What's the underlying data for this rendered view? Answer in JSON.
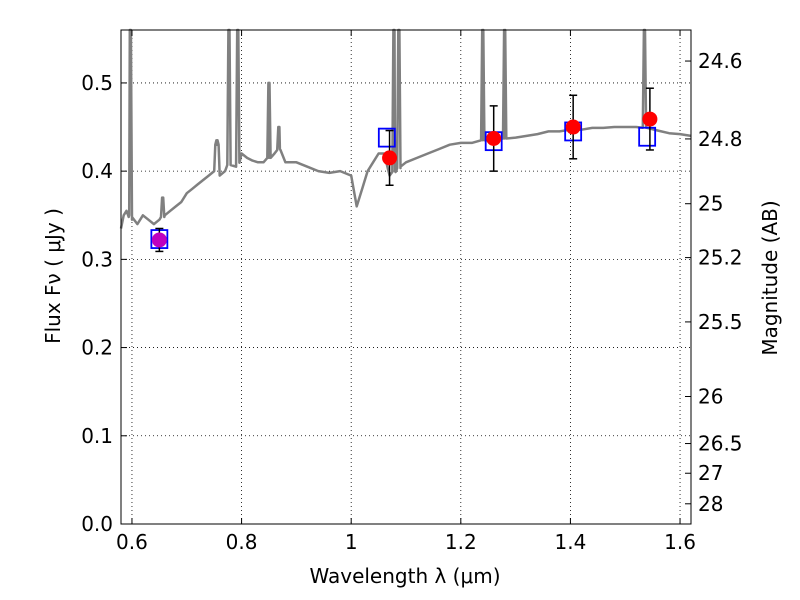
{
  "chart_data": {
    "type": "scatter",
    "xlabel": "Wavelength  λ (μm)",
    "ylabel": "Flux  Fν  ( μJy )",
    "y2label": "Magnitude (AB)",
    "xlim": [
      0.58,
      1.62
    ],
    "ylim": [
      0.0,
      0.56
    ],
    "grid": true,
    "x_ticks": [
      {
        "value": 0.6,
        "label": "0.6"
      },
      {
        "value": 0.8,
        "label": "0.8"
      },
      {
        "value": 1.0,
        "label": "1"
      },
      {
        "value": 1.2,
        "label": "1.2"
      },
      {
        "value": 1.4,
        "label": "1.4"
      },
      {
        "value": 1.6,
        "label": "1.6"
      }
    ],
    "y_ticks": [
      {
        "value": 0.0,
        "label": "0.0"
      },
      {
        "value": 0.1,
        "label": "0.1"
      },
      {
        "value": 0.2,
        "label": "0.2"
      },
      {
        "value": 0.3,
        "label": "0.3"
      },
      {
        "value": 0.4,
        "label": "0.4"
      },
      {
        "value": 0.5,
        "label": "0.5"
      }
    ],
    "y2_ticks": [
      {
        "value": 24.6,
        "label": "24.6"
      },
      {
        "value": 24.8,
        "label": "24.8"
      },
      {
        "value": 25.0,
        "label": "25"
      },
      {
        "value": 25.2,
        "label": "25.2"
      },
      {
        "value": 25.5,
        "label": "25.5"
      },
      {
        "value": 26.0,
        "label": "26"
      },
      {
        "value": 26.5,
        "label": "26.5"
      },
      {
        "value": 27.0,
        "label": "27"
      },
      {
        "value": 28.0,
        "label": "28"
      }
    ],
    "colors": {
      "model": "#808080",
      "observed": "#ff0000",
      "first_point": "#bf00bf",
      "model_box": "#0000ff",
      "errorbar": "#000000",
      "grid": "#000000"
    },
    "model_spectrum": {
      "x": [
        0.58,
        0.585,
        0.59,
        0.595,
        0.6,
        0.61,
        0.62,
        0.63,
        0.64,
        0.65,
        0.66,
        0.67,
        0.68,
        0.69,
        0.7,
        0.71,
        0.72,
        0.73,
        0.74,
        0.75,
        0.755,
        0.76,
        0.77,
        0.78,
        0.79,
        0.8,
        0.81,
        0.82,
        0.83,
        0.84,
        0.85,
        0.86,
        0.87,
        0.88,
        0.9,
        0.92,
        0.94,
        0.96,
        0.98,
        1.0,
        1.01,
        1.02,
        1.03,
        1.04,
        1.05,
        1.06,
        1.07,
        1.08,
        1.09,
        1.1,
        1.12,
        1.14,
        1.16,
        1.18,
        1.2,
        1.22,
        1.24,
        1.26,
        1.28,
        1.3,
        1.32,
        1.34,
        1.36,
        1.38,
        1.4,
        1.42,
        1.44,
        1.46,
        1.48,
        1.5,
        1.52,
        1.54,
        1.56,
        1.58,
        1.6,
        1.62
      ],
      "y": [
        0.335,
        0.35,
        0.355,
        0.35,
        0.345,
        0.34,
        0.35,
        0.345,
        0.34,
        0.345,
        0.35,
        0.355,
        0.36,
        0.365,
        0.375,
        0.38,
        0.385,
        0.39,
        0.395,
        0.4,
        0.43,
        0.395,
        0.4,
        0.41,
        0.405,
        0.42,
        0.415,
        0.412,
        0.41,
        0.41,
        0.415,
        0.42,
        0.425,
        0.41,
        0.41,
        0.405,
        0.4,
        0.398,
        0.4,
        0.395,
        0.36,
        0.38,
        0.4,
        0.41,
        0.42,
        0.42,
        0.395,
        0.4,
        0.405,
        0.41,
        0.415,
        0.42,
        0.425,
        0.43,
        0.432,
        0.432,
        0.435,
        0.435,
        0.437,
        0.438,
        0.44,
        0.442,
        0.445,
        0.445,
        0.447,
        0.447,
        0.449,
        0.449,
        0.45,
        0.45,
        0.45,
        0.449,
        0.446,
        0.443,
        0.442,
        0.44
      ]
    },
    "emission_lines": [
      {
        "x": 0.597,
        "peak": 0.56
      },
      {
        "x": 0.656,
        "peak": 0.37
      },
      {
        "x": 0.755,
        "peak": 0.435
      },
      {
        "x": 0.777,
        "peak": 0.56
      },
      {
        "x": 0.793,
        "peak": 0.56
      },
      {
        "x": 0.85,
        "peak": 0.5
      },
      {
        "x": 0.868,
        "peak": 0.45
      },
      {
        "x": 1.078,
        "peak": 0.56
      },
      {
        "x": 1.087,
        "peak": 0.56
      },
      {
        "x": 1.24,
        "peak": 0.56
      },
      {
        "x": 1.28,
        "peak": 0.56
      },
      {
        "x": 1.535,
        "peak": 0.56
      }
    ],
    "observed_points": [
      {
        "x": 0.65,
        "y": 0.322,
        "err": 0.013,
        "color": "first_point"
      },
      {
        "x": 1.07,
        "y": 0.415,
        "err": 0.031
      },
      {
        "x": 1.26,
        "y": 0.437,
        "err": 0.037
      },
      {
        "x": 1.405,
        "y": 0.45,
        "err": 0.036
      },
      {
        "x": 1.545,
        "y": 0.459,
        "err": 0.035
      }
    ],
    "model_boxes": [
      {
        "x": 0.65,
        "y": 0.323
      },
      {
        "x": 1.065,
        "y": 0.438
      },
      {
        "x": 1.26,
        "y": 0.434
      },
      {
        "x": 1.405,
        "y": 0.445
      },
      {
        "x": 1.54,
        "y": 0.439
      }
    ]
  }
}
